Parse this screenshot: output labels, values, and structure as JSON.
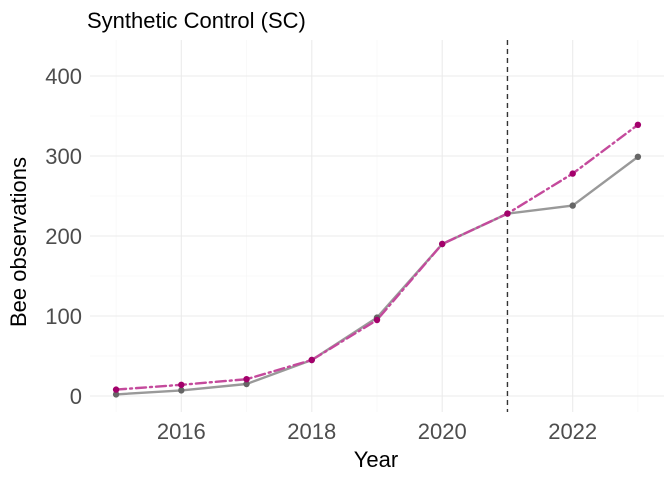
{
  "chart_data": {
    "type": "line",
    "title": "Synthetic Control (SC)",
    "xlabel": "Year",
    "ylabel": "Bee observations",
    "x": [
      2015,
      2016,
      2017,
      2018,
      2019,
      2020,
      2021,
      2022,
      2023
    ],
    "xlim": [
      2014.6,
      2023.4
    ],
    "ylim": [
      -20,
      445
    ],
    "x_ticks": [
      2016,
      2018,
      2020,
      2022
    ],
    "x_tick_labels": [
      "2016",
      "2018",
      "2020",
      "2022"
    ],
    "y_ticks": [
      0,
      100,
      200,
      300,
      400
    ],
    "y_tick_labels": [
      "0",
      "100",
      "200",
      "300",
      "400"
    ],
    "grid": true,
    "legend": "none",
    "intervention_x": 2021,
    "series": [
      {
        "values": [
          2,
          7,
          15,
          45,
          98,
          190,
          228,
          238,
          299
        ],
        "color": "#999999",
        "point_color": "#666666",
        "line_style": "solid"
      },
      {
        "values": [
          8,
          14,
          21,
          45,
          95,
          190,
          228,
          278,
          339
        ],
        "color": "#c44a9c",
        "point_color": "#a3006b",
        "line_style": "dashdot"
      }
    ],
    "intervention_line_color": "#333333"
  }
}
